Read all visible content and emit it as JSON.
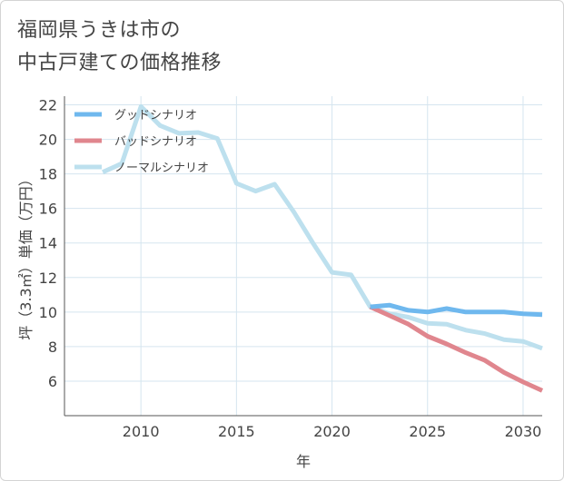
{
  "title_lines": [
    "福岡県うきは市の",
    "中古戸建ての価格推移"
  ],
  "colors": {
    "good": "#6fb8ee",
    "bad": "#e0868e",
    "normal": "#bde0ee",
    "grid": "#d5e5ef",
    "axis": "#555555"
  },
  "chart_data": {
    "type": "line",
    "title": "福岡県うきは市の中古戸建ての価格推移",
    "xlabel": "年",
    "ylabel": "坪（3.3㎡）単価（万円）",
    "xlim": [
      2006,
      2031
    ],
    "ylim": [
      4,
      22.5
    ],
    "xticks": [
      2010,
      2015,
      2020,
      2025,
      2030
    ],
    "yticks": [
      6,
      8,
      10,
      12,
      14,
      16,
      18,
      20,
      22
    ],
    "legend_position": "top-left",
    "series": [
      {
        "name": "グッドシナリオ",
        "color": "#6fb8ee",
        "x": [
          2022,
          2023,
          2024,
          2025,
          2026,
          2027,
          2028,
          2029,
          2030,
          2031
        ],
        "y": [
          10.3,
          10.4,
          10.1,
          10.0,
          10.2,
          10.0,
          10.0,
          10.0,
          9.9,
          9.85
        ]
      },
      {
        "name": "バッドシナリオ",
        "color": "#e0868e",
        "x": [
          2022,
          2023,
          2024,
          2025,
          2026,
          2027,
          2028,
          2029,
          2030,
          2031
        ],
        "y": [
          10.3,
          9.8,
          9.3,
          8.6,
          8.15,
          7.65,
          7.2,
          6.5,
          5.95,
          5.45
        ]
      },
      {
        "name": "ノーマルシナリオ",
        "color": "#bde0ee",
        "x": [
          2008,
          2009,
          2010,
          2011,
          2012,
          2013,
          2014,
          2015,
          2016,
          2017,
          2018,
          2019,
          2020,
          2021,
          2022,
          2023,
          2024,
          2025,
          2026,
          2027,
          2028,
          2029,
          2030,
          2031
        ],
        "y": [
          18.1,
          18.6,
          21.9,
          20.8,
          20.35,
          20.4,
          20.05,
          17.45,
          17.0,
          17.4,
          15.8,
          14.0,
          12.3,
          12.15,
          10.3,
          9.9,
          9.7,
          9.35,
          9.3,
          8.95,
          8.75,
          8.4,
          8.3,
          7.9
        ]
      }
    ]
  }
}
